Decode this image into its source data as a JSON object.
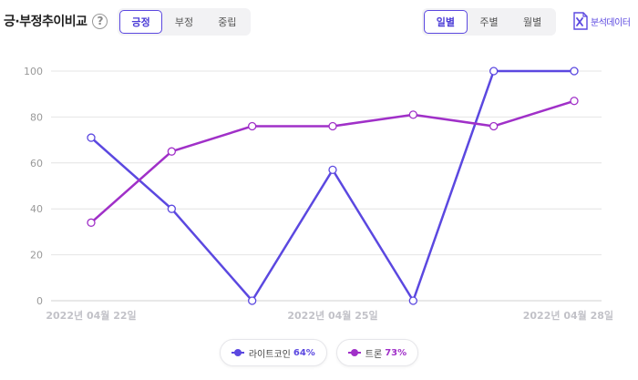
{
  "header": {
    "title": "긍·부정추이비교",
    "help": "?",
    "sentiment_tabs": [
      "긍정",
      "부정",
      "중립"
    ],
    "sentiment_active": 0,
    "period_tabs": [
      "일별",
      "주별",
      "월별"
    ],
    "period_active": 0,
    "export_label": "분석데이터"
  },
  "colors": {
    "series1": "#5b48e0",
    "series2": "#a030c8",
    "grid": "#e4e4e4",
    "axis_text": "#999999"
  },
  "chart_data": {
    "type": "line",
    "x": [
      "2022-04-22",
      "2022-04-23",
      "2022-04-24",
      "2022-04-25",
      "2022-04-26",
      "2022-04-27",
      "2022-04-28"
    ],
    "x_tick_labels": [
      {
        "index": 0,
        "label": "2022년 04월 22일"
      },
      {
        "index": 3,
        "label": "2022년 04월 25일"
      },
      {
        "index": 6,
        "label": "2022년 04월 28일"
      }
    ],
    "ylim": [
      0,
      100
    ],
    "yticks": [
      0,
      20,
      40,
      60,
      80,
      100
    ],
    "grid": true,
    "series": [
      {
        "name": "라이트코인",
        "percent": "64%",
        "values": [
          71,
          40,
          0,
          57,
          0,
          100,
          100
        ]
      },
      {
        "name": "트론",
        "percent": "73%",
        "values": [
          34,
          65,
          76,
          76,
          81,
          76,
          87
        ]
      }
    ],
    "legend_position": "bottom"
  }
}
